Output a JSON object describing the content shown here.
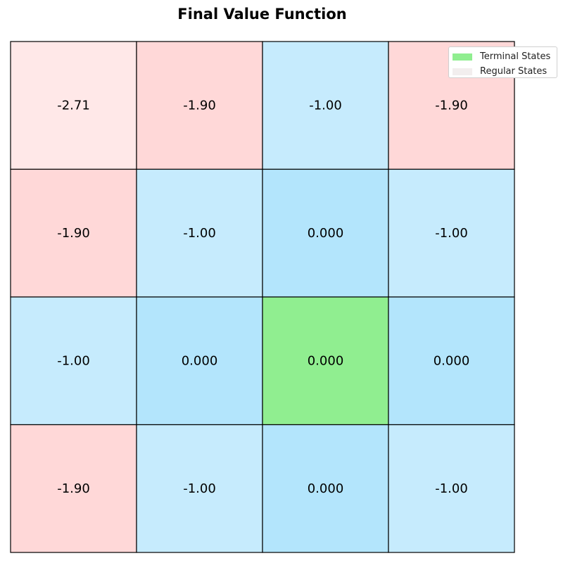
{
  "chart_data": {
    "type": "heatmap",
    "title": "Final Value Function",
    "xlabel": "",
    "ylabel": "",
    "rows": 4,
    "cols": 4,
    "values": [
      [
        "-2.71",
        "-1.90",
        "-1.00",
        "-1.90"
      ],
      [
        "-1.90",
        "-1.00",
        "0.000",
        "-1.00"
      ],
      [
        "-1.00",
        "0.000",
        "0.000",
        "0.000"
      ],
      [
        "-1.90",
        "-1.00",
        "0.000",
        "-1.00"
      ]
    ],
    "terminal_states": [
      [
        2,
        2
      ]
    ],
    "colors": {
      "terminal": "#90ee90",
      "value_0": "#b3e5fc",
      "value_neg1": "#c6ebfd",
      "value_neg1_9": "#ffd8d8",
      "value_neg2_71": "#ffe8e8",
      "grid_line": "#000000"
    },
    "legend": {
      "placement": "top-right",
      "entries": [
        {
          "label": "Terminal States",
          "color": "#90ee90"
        },
        {
          "label": "Regular States",
          "color": "#f2eeee"
        }
      ]
    }
  }
}
